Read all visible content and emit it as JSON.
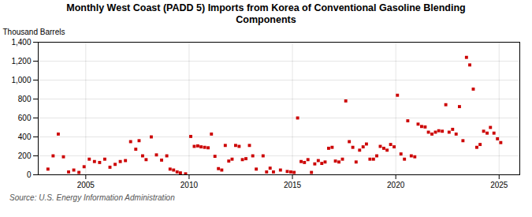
{
  "chart_data": {
    "type": "scatter",
    "title": "Monthly West Coast (PADD 5) Imports from Korea of Conventional Gasoline Blending\nComponents",
    "ylabel": "Thousand Barrels",
    "source": "Source: U.S. Energy Information Administration",
    "color": "#cc0000",
    "marker": "square",
    "grid": true,
    "xlim": [
      2002.7,
      2026.0
    ],
    "xticks": [
      2005,
      2010,
      2015,
      2020,
      2025
    ],
    "ylim": [
      0,
      1400
    ],
    "yticks": [
      0,
      200,
      400,
      600,
      800,
      {
        "value": 1000,
        "label": "1,000"
      },
      {
        "value": 1200,
        "label": "1,200"
      },
      {
        "value": 1400,
        "label": "1,400"
      }
    ],
    "x": [
      2003.17,
      2003.42,
      2003.67,
      2003.92,
      2004.17,
      2004.42,
      2004.67,
      2004.92,
      2005.17,
      2005.42,
      2005.67,
      2005.92,
      2006.17,
      2006.42,
      2006.67,
      2006.92,
      2007.17,
      2007.42,
      2007.58,
      2007.75,
      2007.92,
      2008.17,
      2008.42,
      2008.67,
      2008.92,
      2009.08,
      2009.25,
      2009.42,
      2009.58,
      2009.83,
      2010.08,
      2010.25,
      2010.42,
      2010.58,
      2010.75,
      2010.92,
      2011.08,
      2011.25,
      2011.42,
      2011.58,
      2011.75,
      2011.92,
      2012.08,
      2012.25,
      2012.42,
      2012.58,
      2012.75,
      2012.92,
      2013.08,
      2013.25,
      2013.58,
      2013.75,
      2013.92,
      2014.08,
      2014.42,
      2014.75,
      2014.92,
      2015.08,
      2015.25,
      2015.42,
      2015.58,
      2015.75,
      2015.92,
      2016.08,
      2016.25,
      2016.42,
      2016.58,
      2016.75,
      2016.92,
      2017.08,
      2017.25,
      2017.42,
      2017.58,
      2017.75,
      2017.92,
      2018.08,
      2018.25,
      2018.42,
      2018.58,
      2018.75,
      2018.92,
      2019.08,
      2019.25,
      2019.42,
      2019.58,
      2019.75,
      2019.92,
      2020.08,
      2020.25,
      2020.42,
      2020.58,
      2020.75,
      2020.92,
      2021.08,
      2021.25,
      2021.42,
      2021.58,
      2021.75,
      2021.92,
      2022.08,
      2022.25,
      2022.42,
      2022.58,
      2022.75,
      2022.92,
      2023.08,
      2023.25,
      2023.42,
      2023.58,
      2023.75,
      2023.92,
      2024.08,
      2024.25,
      2024.42,
      2024.58,
      2024.75,
      2024.92,
      2025.08
    ],
    "values": [
      60,
      200,
      430,
      190,
      30,
      50,
      25,
      85,
      165,
      140,
      130,
      165,
      80,
      110,
      140,
      150,
      350,
      270,
      360,
      200,
      160,
      400,
      210,
      155,
      200,
      60,
      50,
      30,
      20,
      10,
      405,
      300,
      305,
      295,
      290,
      285,
      430,
      195,
      65,
      50,
      310,
      145,
      165,
      310,
      300,
      160,
      170,
      310,
      200,
      60,
      200,
      30,
      70,
      30,
      50,
      35,
      30,
      25,
      600,
      140,
      130,
      160,
      25,
      115,
      150,
      120,
      135,
      280,
      290,
      145,
      135,
      165,
      780,
      350,
      290,
      135,
      260,
      295,
      325,
      165,
      165,
      200,
      300,
      280,
      260,
      320,
      295,
      840,
      220,
      165,
      570,
      200,
      190,
      535,
      510,
      505,
      450,
      430,
      450,
      465,
      460,
      740,
      450,
      480,
      430,
      720,
      360,
      1240,
      1160,
      905,
      290,
      320,
      460,
      440,
      500,
      440,
      380,
      340
    ]
  }
}
